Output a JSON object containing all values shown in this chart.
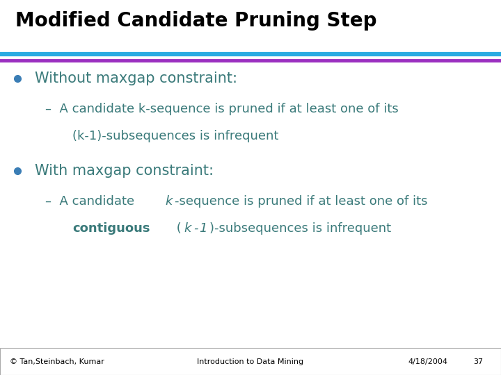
{
  "title": "Modified Candidate Pruning Step",
  "title_fontsize": 20,
  "title_color": "#000000",
  "bg_color": "#ffffff",
  "line1_color": "#29ABE2",
  "line2_color": "#9B30C0",
  "bullet_color": "#3A7DB5",
  "text_color": "#3A7A7A",
  "footer_box_color": "#aaaaaa",
  "footer_left": "© Tan,Steinbach, Kumar",
  "footer_center": "Introduction to Data Mining",
  "footer_right": "4/18/2004",
  "footer_page": "37",
  "footer_fontsize": 8,
  "bullet_fontsize": 15,
  "sub_fontsize": 13
}
